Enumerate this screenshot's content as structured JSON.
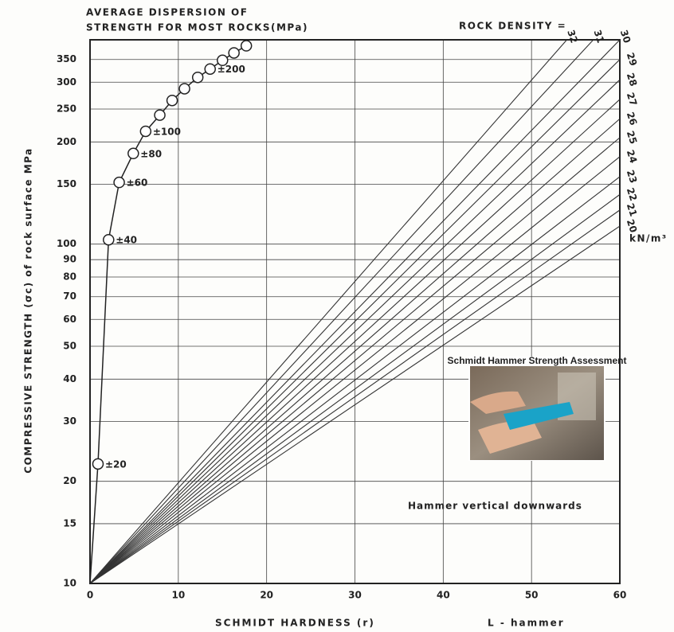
{
  "chart_data": {
    "type": "line",
    "title": [
      "AVERAGE  DISPERSION  OF",
      "STRENGTH  FOR  MOST  ROCKS(MPa)"
    ],
    "density_label": "ROCK  DENSITY  =",
    "density_unit": "kN/m³",
    "x_label": "SCHMIDT    HARDNESS  (r)",
    "x_label_2": "L - hammer",
    "y_label": "COMPRESSIVE    STRENGTH (σc) of rock surface MPa",
    "annotation": "Hammer vertical downwards",
    "inset_title": "Schmidt Hammer Strength Assessment",
    "log_y": true,
    "grid": true,
    "xlim": [
      0,
      60
    ],
    "ylim": [
      10,
      400
    ],
    "xticks": [
      0,
      10,
      20,
      30,
      40,
      50,
      60
    ],
    "yticks": [
      10,
      15,
      20,
      30,
      40,
      50,
      60,
      70,
      80,
      90,
      100,
      150,
      200,
      250,
      300,
      350
    ],
    "series": [
      {
        "name": "20",
        "color": "#333333",
        "x": [
          0,
          60
        ],
        "values": [
          10,
          113
        ]
      },
      {
        "name": "21",
        "color": "#333333",
        "x": [
          0,
          60
        ],
        "values": [
          10,
          126
        ]
      },
      {
        "name": "22",
        "color": "#333333",
        "x": [
          0,
          60
        ],
        "values": [
          10,
          140
        ]
      },
      {
        "name": "23",
        "color": "#333333",
        "x": [
          0,
          60
        ],
        "values": [
          10,
          158
        ]
      },
      {
        "name": "24",
        "color": "#333333",
        "x": [
          0,
          60
        ],
        "values": [
          10,
          181
        ]
      },
      {
        "name": "25",
        "color": "#333333",
        "x": [
          0,
          60
        ],
        "values": [
          10,
          206
        ]
      },
      {
        "name": "26",
        "color": "#333333",
        "x": [
          0,
          60
        ],
        "values": [
          10,
          234
        ]
      },
      {
        "name": "27",
        "color": "#333333",
        "x": [
          0,
          60
        ],
        "values": [
          10,
          267
        ]
      },
      {
        "name": "28",
        "color": "#333333",
        "x": [
          0,
          60
        ],
        "values": [
          10,
          305
        ]
      },
      {
        "name": "29",
        "color": "#333333",
        "x": [
          0,
          60
        ],
        "values": [
          10,
          350
        ]
      },
      {
        "name": "30",
        "color": "#333333",
        "x": [
          0,
          60
        ],
        "values": [
          10,
          400
        ]
      },
      {
        "name": "31",
        "color": "#333333",
        "x": [
          0,
          57
        ],
        "values": [
          10,
          400
        ]
      },
      {
        "name": "32",
        "color": "#333333",
        "x": [
          0,
          54
        ],
        "values": [
          10,
          400
        ]
      }
    ],
    "dispersion": {
      "color": "#222222",
      "x": [
        0.9,
        2.1,
        3.3,
        4.9,
        6.3,
        7.9,
        9.3,
        10.7,
        12.2,
        13.6,
        15,
        16.3,
        17.7
      ],
      "values": [
        22.5,
        103,
        152,
        185,
        215,
        240,
        265,
        287,
        310,
        328,
        348,
        366,
        384
      ],
      "labels": [
        "±20",
        "±40",
        "±60",
        "±80",
        "±100",
        null,
        null,
        null,
        null,
        "±200",
        null,
        null,
        null
      ]
    }
  }
}
